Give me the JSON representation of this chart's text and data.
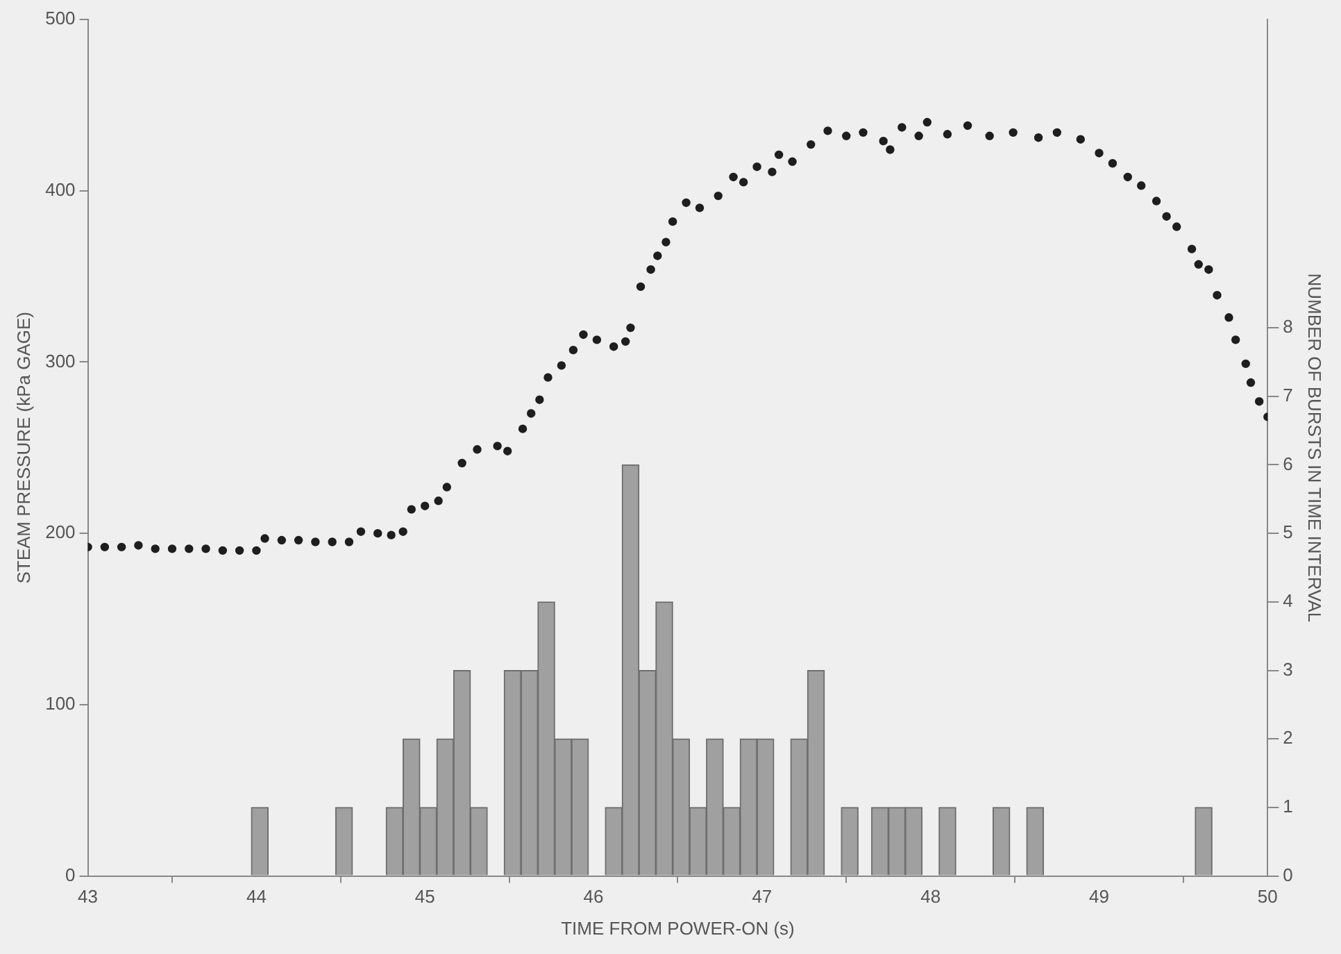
{
  "chart_data": {
    "type": "scatter",
    "xlabel": "TIME FROM POWER-ON (s)",
    "ylabel": "STEAM PRESSURE (kPa GAGE)",
    "y2label": "NUMBER OF BURSTS IN TIME INTERVAL",
    "xlim": [
      43,
      50
    ],
    "xticks": [
      43,
      44,
      45,
      46,
      47,
      48,
      49,
      50
    ],
    "ylim": [
      0,
      500
    ],
    "yticks": [
      0,
      100,
      200,
      300,
      400,
      500
    ],
    "y2lim": [
      0,
      12.5
    ],
    "y2ticks": [
      0,
      1,
      2,
      3,
      4,
      5,
      6,
      7,
      8
    ],
    "grid": false,
    "legend": false,
    "marker": "circle",
    "series": [
      {
        "type": "bar",
        "axis": "y2",
        "color": "#a0a0a0",
        "x": [
          44.02,
          44.52,
          44.82,
          44.92,
          45.02,
          45.12,
          45.22,
          45.32,
          45.52,
          45.62,
          45.72,
          45.82,
          45.92,
          46.12,
          46.22,
          46.32,
          46.42,
          46.52,
          46.62,
          46.72,
          46.82,
          46.92,
          47.02,
          47.22,
          47.32,
          47.52,
          47.7,
          47.8,
          47.9,
          48.1,
          48.42,
          48.62,
          49.62
        ],
        "values": [
          1,
          1,
          1,
          2,
          1,
          2,
          3,
          1,
          3,
          3,
          4,
          2,
          2,
          1,
          6,
          3,
          4,
          2,
          1,
          2,
          1,
          2,
          2,
          2,
          3,
          1,
          1,
          1,
          1,
          1,
          1,
          1,
          1
        ]
      },
      {
        "color": "#1e1e1e",
        "x": [
          43.0,
          43.1,
          43.2,
          43.3,
          43.4,
          43.5,
          43.6,
          43.7,
          43.8,
          43.9,
          44.0,
          44.05,
          44.15,
          44.25,
          44.35,
          44.45,
          44.55,
          44.62,
          44.72,
          44.8,
          44.87,
          44.92,
          45.0,
          45.08,
          45.13,
          45.22,
          45.31,
          45.43,
          45.49,
          45.58,
          45.63,
          45.68,
          45.73,
          45.81,
          45.88,
          45.94,
          46.02,
          46.12,
          46.19,
          46.22,
          46.28,
          46.34,
          46.38,
          46.43,
          46.47,
          46.55,
          46.63,
          46.74,
          46.83,
          46.89,
          46.97,
          47.06,
          47.1,
          47.18,
          47.29,
          47.39,
          47.5,
          47.6,
          47.72,
          47.76,
          47.83,
          47.93,
          47.98,
          48.1,
          48.22,
          48.35,
          48.49,
          48.64,
          48.75,
          48.89,
          49.0,
          49.08,
          49.17,
          49.25,
          49.34,
          49.4,
          49.46,
          49.55,
          49.59,
          49.65,
          49.7,
          49.77,
          49.81,
          49.87,
          49.9,
          49.95,
          50.0
        ],
        "values": [
          192,
          192,
          192,
          193,
          191,
          191,
          191,
          191,
          190,
          190,
          190,
          197,
          196,
          196,
          195,
          195,
          195,
          201,
          200,
          199,
          201,
          214,
          216,
          219,
          227,
          241,
          249,
          251,
          248,
          261,
          270,
          278,
          291,
          298,
          307,
          316,
          313,
          309,
          312,
          320,
          344,
          354,
          362,
          370,
          382,
          393,
          390,
          397,
          408,
          405,
          414,
          411,
          421,
          417,
          427,
          435,
          432,
          434,
          429,
          424,
          437,
          432,
          440,
          433,
          438,
          432,
          434,
          431,
          434,
          430,
          422,
          416,
          408,
          403,
          394,
          385,
          379,
          366,
          357,
          354,
          339,
          326,
          313,
          299,
          288,
          277,
          268
        ]
      }
    ]
  }
}
